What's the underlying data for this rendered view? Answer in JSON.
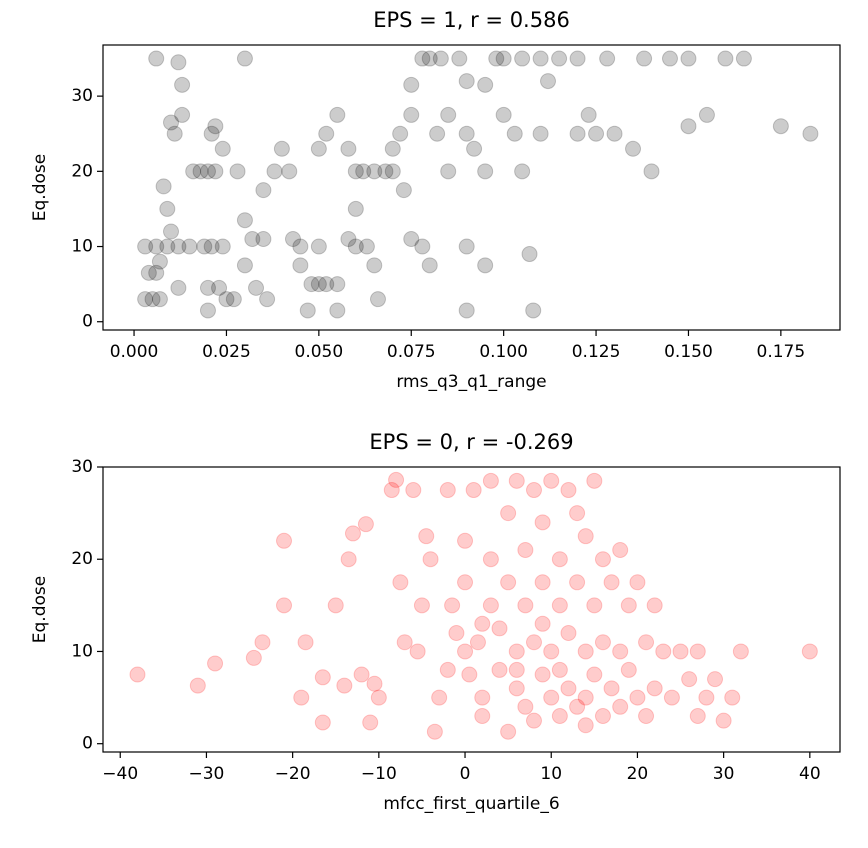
{
  "chart_data": [
    {
      "type": "scatter",
      "title": "EPS = 1, r = 0.586",
      "xlabel": "rms_q3_q1_range",
      "ylabel": "Eq.dose",
      "color": "#000000",
      "alpha": 0.2,
      "xlim": [
        -0.0084,
        0.191
      ],
      "ylim": [
        -1.1,
        36.8
      ],
      "xticks": [
        {
          "value": 0,
          "label": "0.000"
        },
        {
          "value": 0.025,
          "label": "0.025"
        },
        {
          "value": 0.05,
          "label": "0.050"
        },
        {
          "value": 0.075,
          "label": "0.075"
        },
        {
          "value": 0.1,
          "label": "0.100"
        },
        {
          "value": 0.125,
          "label": "0.125"
        },
        {
          "value": 0.15,
          "label": "0.150"
        },
        {
          "value": 0.175,
          "label": "0.175"
        }
      ],
      "yticks": [
        0,
        10,
        20,
        30
      ],
      "x": [
        0.003,
        0.005,
        0.007,
        0.004,
        0.006,
        0.003,
        0.006,
        0.009,
        0.012,
        0.015,
        0.007,
        0.008,
        0.006,
        0.012,
        0.013,
        0.01,
        0.011,
        0.013,
        0.009,
        0.01,
        0.012,
        0.016,
        0.018,
        0.02,
        0.022,
        0.019,
        0.021,
        0.024,
        0.02,
        0.023,
        0.025,
        0.027,
        0.02,
        0.022,
        0.021,
        0.024,
        0.03,
        0.028,
        0.03,
        0.032,
        0.035,
        0.03,
        0.033,
        0.036,
        0.035,
        0.038,
        0.04,
        0.042,
        0.043,
        0.045,
        0.045,
        0.048,
        0.047,
        0.05,
        0.05,
        0.052,
        0.055,
        0.055,
        0.05,
        0.052,
        0.055,
        0.058,
        0.06,
        0.062,
        0.065,
        0.068,
        0.06,
        0.058,
        0.06,
        0.063,
        0.065,
        0.066,
        0.07,
        0.072,
        0.075,
        0.07,
        0.073,
        0.075,
        0.078,
        0.08,
        0.078,
        0.08,
        0.083,
        0.088,
        0.09,
        0.082,
        0.085,
        0.09,
        0.092,
        0.095,
        0.085,
        0.09,
        0.095,
        0.09,
        0.098,
        0.1,
        0.105,
        0.1,
        0.103,
        0.105,
        0.108,
        0.107,
        0.11,
        0.11,
        0.115,
        0.12,
        0.12,
        0.123,
        0.125,
        0.128,
        0.13,
        0.135,
        0.138,
        0.14,
        0.145,
        0.15,
        0.155,
        0.16,
        0.165,
        0.175,
        0.183,
        0.15,
        0.112,
        0.095,
        0.075
      ],
      "values": [
        3,
        3,
        3,
        6.5,
        6.5,
        10,
        10,
        10,
        10,
        10,
        8,
        18,
        35,
        34.5,
        31.5,
        26.5,
        25,
        27.5,
        15,
        12,
        4.5,
        20,
        20,
        20,
        20,
        10,
        10,
        10,
        4.5,
        4.5,
        3,
        3,
        1.5,
        26,
        25,
        23,
        35,
        20,
        13.5,
        11,
        11,
        7.5,
        4.5,
        3,
        17.5,
        20,
        23,
        20,
        11,
        10,
        7.5,
        5,
        1.5,
        10,
        5,
        5,
        5,
        1.5,
        23,
        25,
        27.5,
        23,
        20,
        20,
        20,
        20,
        15,
        11,
        10,
        10,
        7.5,
        3,
        20,
        25,
        27.5,
        23,
        17.5,
        11,
        10,
        7.5,
        35,
        35,
        35,
        35,
        32,
        25,
        27.5,
        25,
        23,
        20,
        20,
        10,
        7.5,
        1.5,
        35,
        35,
        35,
        27.5,
        25,
        20,
        1.5,
        9,
        25,
        35,
        35,
        25,
        35,
        27.5,
        25,
        35,
        25,
        23,
        35,
        20,
        35,
        26,
        27.5,
        35,
        35,
        26,
        25,
        35,
        32,
        31.5,
        31.5
      ]
    },
    {
      "type": "scatter",
      "title": "EPS = 0, r = -0.269",
      "xlabel": "mfcc_first_quartile_6",
      "ylabel": "Eq.dose",
      "color": "#ff0000",
      "alpha": 0.2,
      "xlim": [
        -42,
        43.5
      ],
      "ylim": [
        -0.9,
        30
      ],
      "xticks": [
        {
          "value": -40,
          "label": "−40"
        },
        {
          "value": -30,
          "label": "−30"
        },
        {
          "value": -20,
          "label": "−20"
        },
        {
          "value": -10,
          "label": "−10"
        },
        0,
        10,
        20,
        30,
        40
      ],
      "yticks": [
        0,
        10,
        20,
        30
      ],
      "x": [
        -38,
        -31,
        -29,
        -24.5,
        -23.5,
        -21,
        -21,
        -19,
        -18.5,
        -16.5,
        -16.5,
        -15,
        -14,
        -13.5,
        -13,
        -12,
        -11.5,
        -11,
        -10.5,
        -10,
        -8,
        -8.5,
        -7.5,
        -7,
        -6,
        -5.5,
        -5,
        -4.5,
        -4,
        -3.5,
        -3,
        -2,
        -1.5,
        -1,
        0,
        0,
        0,
        0.5,
        1,
        1.5,
        2,
        2,
        3,
        3,
        3,
        4,
        4,
        5,
        5,
        5,
        6,
        6,
        6,
        7,
        7,
        7,
        8,
        8,
        8,
        9,
        9,
        9,
        10,
        10,
        10,
        11,
        11,
        11,
        12,
        12,
        12,
        13,
        13,
        13,
        14,
        14,
        14,
        15,
        15,
        15,
        16,
        16,
        16,
        17,
        17,
        18,
        18,
        18,
        19,
        19,
        20,
        20,
        21,
        21,
        22,
        22,
        23,
        24,
        25,
        26,
        27,
        27,
        28,
        29,
        30,
        31,
        32,
        40,
        14,
        6,
        2,
        -2,
        9,
        11
      ],
      "values": [
        7.5,
        6.3,
        8.7,
        9.3,
        11,
        22,
        15,
        5,
        11,
        7.2,
        2.3,
        15,
        6.3,
        20,
        22.8,
        7.5,
        23.8,
        2.3,
        6.5,
        5,
        28.6,
        27.5,
        17.5,
        11,
        27.5,
        10,
        15,
        22.5,
        20,
        1.3,
        5,
        27.5,
        15,
        12,
        22,
        17.5,
        10,
        7.5,
        27.5,
        11,
        5,
        3,
        28.5,
        20,
        15,
        12.5,
        8,
        1.3,
        25,
        17.5,
        28.5,
        10,
        6,
        21,
        15,
        4,
        27.5,
        11,
        2.5,
        24,
        17.5,
        7.5,
        28.5,
        10,
        5,
        20,
        15,
        3,
        27.5,
        12,
        6,
        25,
        17.5,
        4,
        22.5,
        10,
        5,
        28.5,
        15,
        7.5,
        20,
        11,
        3,
        17.5,
        6,
        21,
        10,
        4,
        15,
        8,
        17.5,
        5,
        11,
        3,
        15,
        6,
        10,
        5,
        10,
        7,
        3,
        10,
        5,
        7,
        2.5,
        5,
        10,
        10,
        2,
        8,
        13,
        8,
        13,
        8
      ]
    }
  ]
}
